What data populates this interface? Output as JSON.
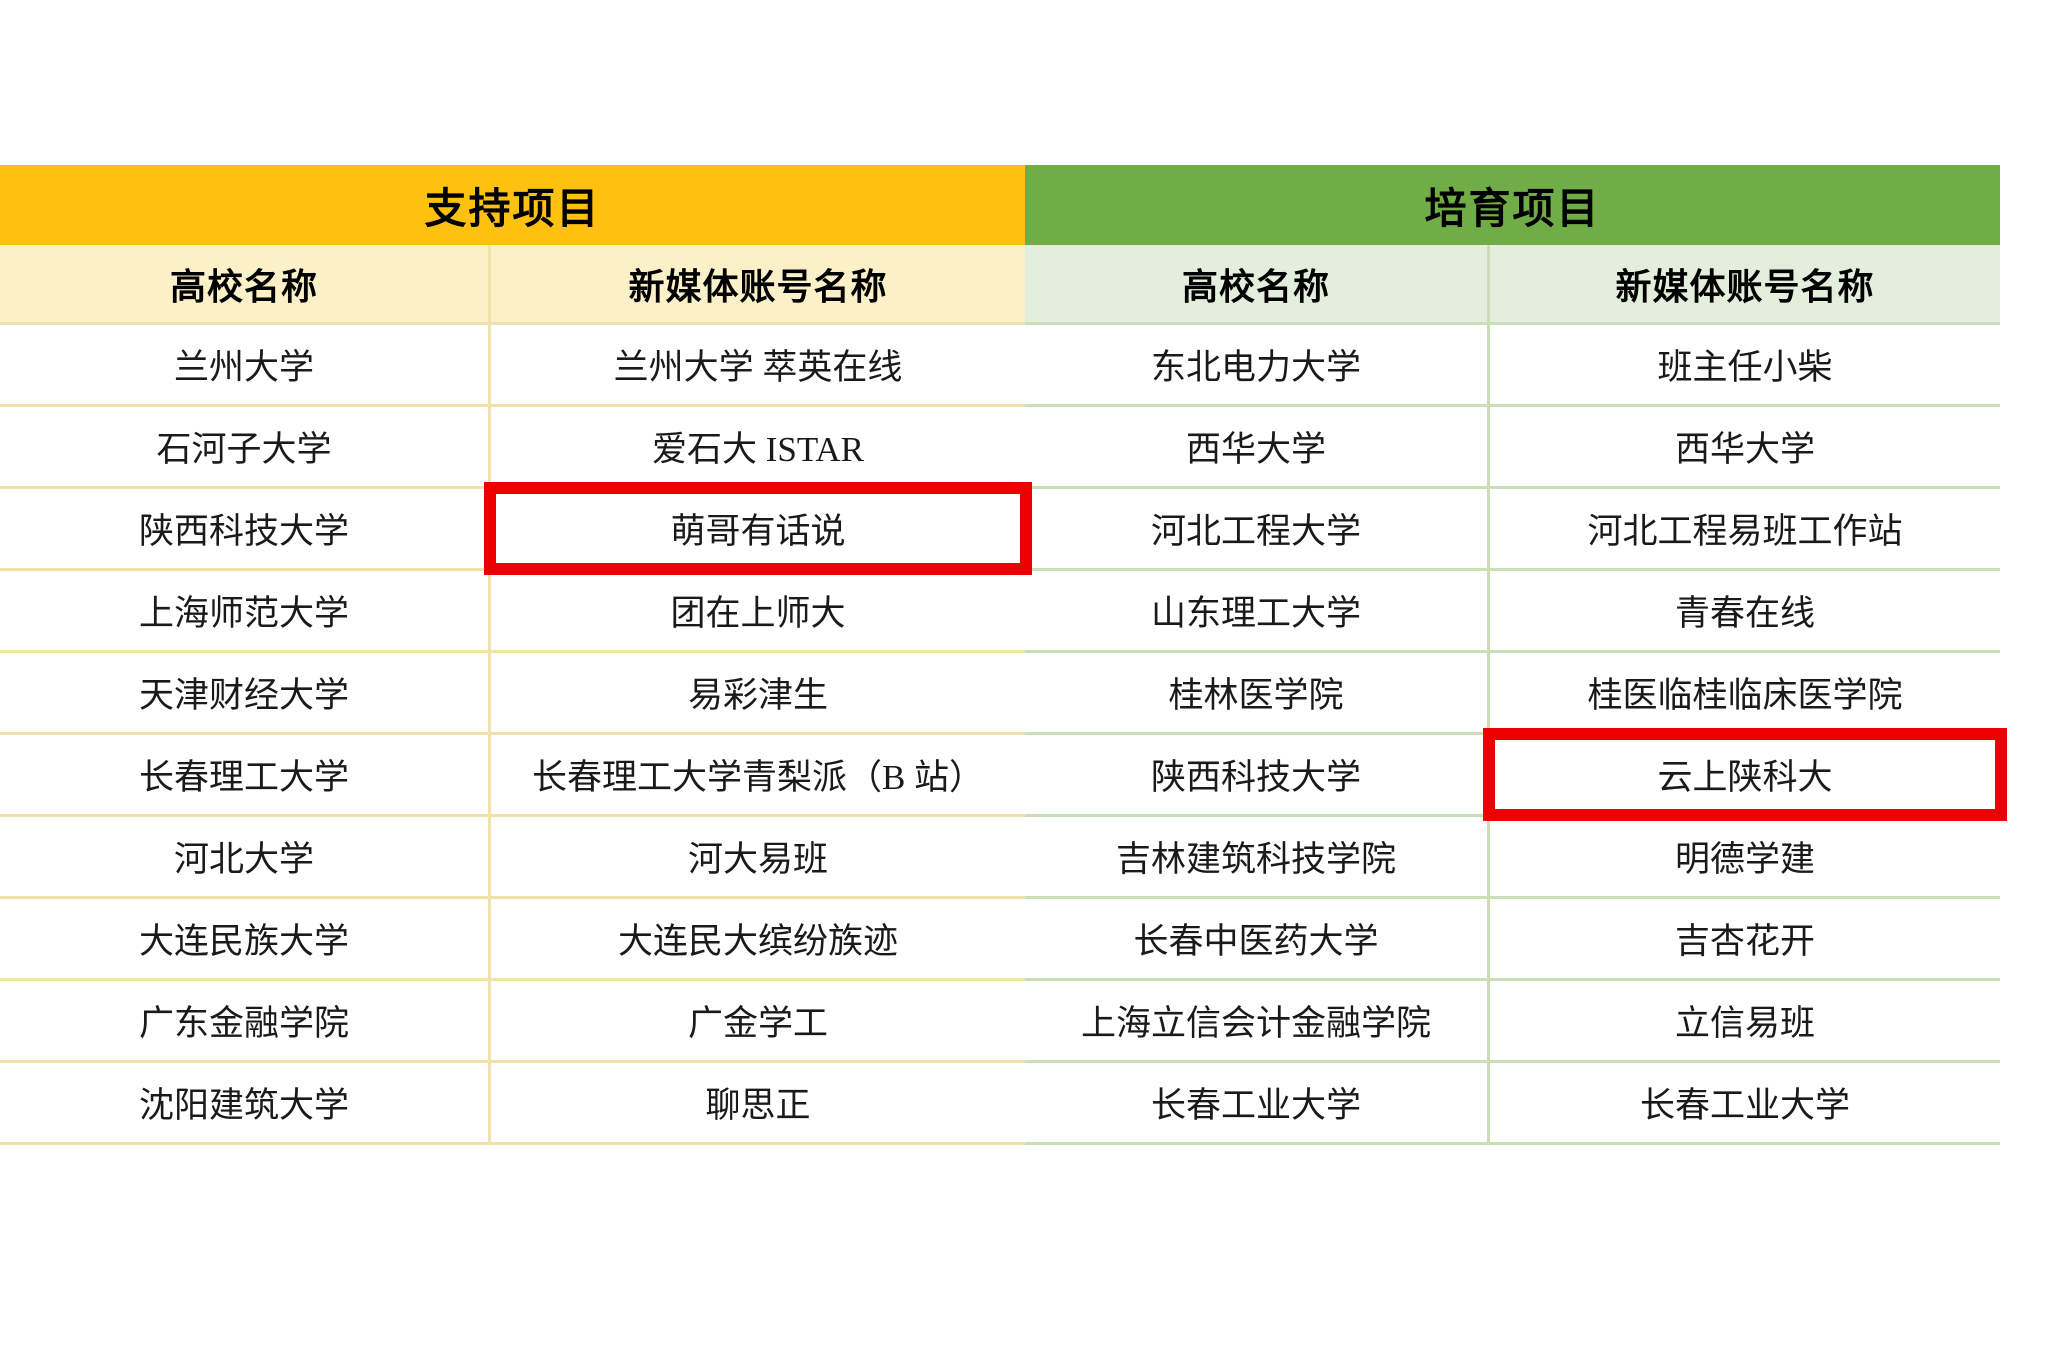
{
  "colors": {
    "page_bg": "#FFFFFF",
    "support_header_bg": "#FEC110",
    "support_subheader_bg": "#FBF0C8",
    "support_line": "#EFE2AB",
    "cultivate_header_bg": "#70AD47",
    "cultivate_subheader_bg": "#E3EFDC",
    "cultivate_line": "#CBDEB7",
    "highlight_border": "#ED0000",
    "header_text": "#000000",
    "body_text": "#1A1A1A"
  },
  "table": {
    "sections": [
      {
        "title": "支持项目"
      },
      {
        "title": "培育项目"
      }
    ],
    "column_headers": [
      "高校名称",
      "新媒体账号名称",
      "高校名称",
      "新媒体账号名称"
    ],
    "rows": [
      {
        "cells": [
          "兰州大学",
          "兰州大学 萃英在线",
          "东北电力大学",
          "班主任小柴"
        ]
      },
      {
        "cells": [
          "石河子大学",
          "爱石大 ISTAR",
          "西华大学",
          "西华大学"
        ]
      },
      {
        "cells": [
          "陕西科技大学",
          "萌哥有话说",
          "河北工程大学",
          "河北工程易班工作站"
        ]
      },
      {
        "cells": [
          "上海师范大学",
          "团在上师大",
          "山东理工大学",
          "青春在线"
        ]
      },
      {
        "cells": [
          "天津财经大学",
          "易彩津生",
          "桂林医学院",
          "桂医临桂临床医学院"
        ]
      },
      {
        "cells": [
          "长春理工大学",
          "长春理工大学青梨派（B 站）",
          "陕西科技大学",
          "云上陕科大"
        ]
      },
      {
        "cells": [
          "河北大学",
          "河大易班",
          "吉林建筑科技学院",
          "明德学建"
        ]
      },
      {
        "cells": [
          "大连民族大学",
          "大连民大缤纷族迹",
          "长春中医药大学",
          "吉杏花开"
        ]
      },
      {
        "cells": [
          "广东金融学院",
          "广金学工",
          "上海立信会计金融学院",
          "立信易班"
        ]
      },
      {
        "cells": [
          "沈阳建筑大学",
          "聊思正",
          "长春工业大学",
          "长春工业大学"
        ]
      }
    ],
    "highlights": [
      {
        "row_index": 2,
        "col_index": 1
      },
      {
        "row_index": 5,
        "col_index": 3
      }
    ]
  }
}
